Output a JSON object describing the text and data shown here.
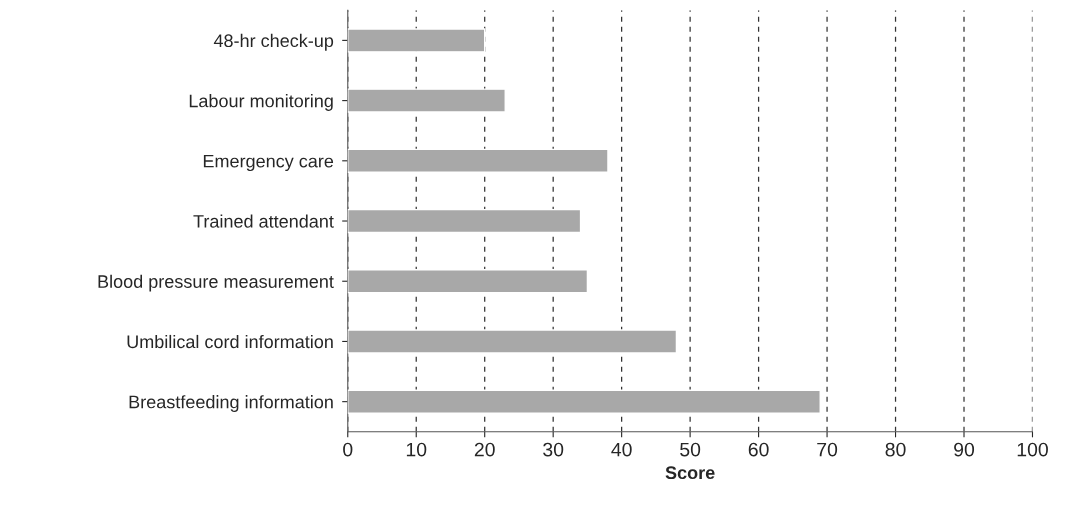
{
  "chart_data": {
    "type": "bar",
    "orientation": "horizontal",
    "xlabel": "Score",
    "categories": [
      "48-hr check-up",
      "Labour monitoring",
      "Emergency care",
      "Trained attendant",
      "Blood pressure measurement",
      "Umbilical cord information",
      "Breastfeeding information"
    ],
    "values": [
      20,
      23,
      38,
      34,
      35,
      48,
      69
    ],
    "color": "#a8a8a8",
    "xlim": [
      0,
      100
    ],
    "xticks": [
      0,
      10,
      20,
      30,
      40,
      50,
      60,
      70,
      80,
      90,
      100
    ],
    "grid": "x"
  }
}
